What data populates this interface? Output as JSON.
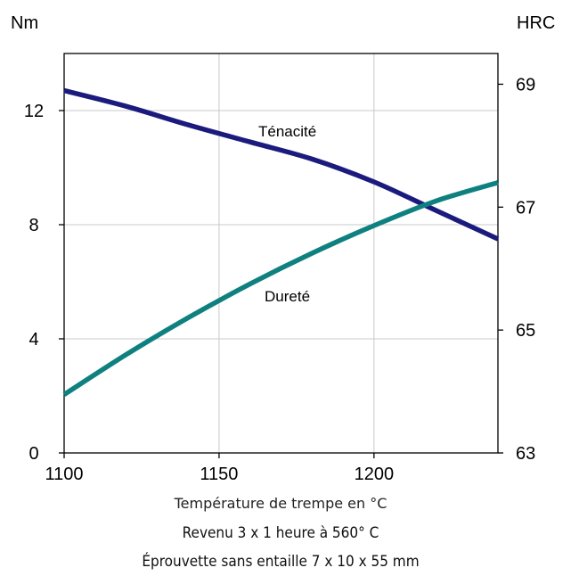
{
  "chart_data": {
    "type": "line",
    "xlabel": "Température de trempe en °C",
    "ylabel_left": "Nm",
    "ylabel_right": "HRC",
    "xlim": [
      1100,
      1240
    ],
    "ylim_left": [
      0,
      14
    ],
    "ylim_right": [
      63,
      69.5
    ],
    "x_ticks": [
      1100,
      1150,
      1200
    ],
    "y_ticks_left": [
      0,
      4,
      8,
      12
    ],
    "y_ticks_right": [
      63,
      65,
      67,
      69
    ],
    "grid": true,
    "series": [
      {
        "name": "Ténacité",
        "axis": "left",
        "color": "#1b1b7e",
        "x": [
          1100,
          1120,
          1140,
          1160,
          1180,
          1200,
          1220,
          1240
        ],
        "values": [
          12.7,
          12.15,
          11.5,
          10.9,
          10.3,
          9.5,
          8.5,
          7.5
        ]
      },
      {
        "name": "Dureté",
        "axis": "right",
        "color": "#0f8080",
        "x": [
          1100,
          1120,
          1140,
          1160,
          1180,
          1200,
          1220,
          1240
        ],
        "values": [
          63.95,
          64.6,
          65.2,
          65.75,
          66.25,
          66.7,
          67.1,
          67.4
        ]
      }
    ],
    "annotations": [
      "Revenu 3 x 1 heure à 560° C",
      "Éprouvette sans entaille 7 x 10 x 55 mm"
    ]
  }
}
